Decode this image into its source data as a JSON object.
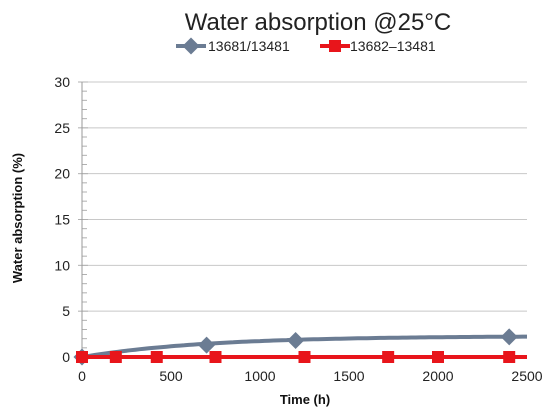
{
  "chart_data": {
    "type": "line",
    "title": "Water absorption @25°C",
    "xlabel": "Time (h)",
    "ylabel": "Water absorption (%)",
    "xlim": [
      0,
      2500
    ],
    "ylim": [
      0,
      30
    ],
    "x_ticks": [
      0,
      500,
      1000,
      1500,
      2000,
      2500
    ],
    "y_ticks": [
      0,
      5,
      10,
      15,
      20,
      25,
      30
    ],
    "x_tick_labels": [
      "0",
      "500",
      "1000",
      "1500",
      "2000",
      "2500"
    ],
    "y_tick_labels": [
      "0",
      "5",
      "10",
      "15",
      "20",
      "25",
      "30"
    ],
    "grid": "horizontal",
    "legend_position": "top",
    "series": [
      {
        "name": "13681/13481",
        "color": "#6b7c93",
        "marker": "diamond",
        "smooth": true,
        "x": [
          0,
          700,
          1200,
          2400
        ],
        "y": [
          0,
          1.3,
          1.8,
          2.2
        ]
      },
      {
        "name": "13682–13481",
        "color": "#e8151b",
        "marker": "square",
        "smooth": false,
        "x": [
          0,
          190,
          420,
          750,
          1250,
          1720,
          2000,
          2400
        ],
        "y": [
          0,
          0,
          0,
          0,
          0,
          0,
          0,
          0
        ]
      }
    ]
  }
}
